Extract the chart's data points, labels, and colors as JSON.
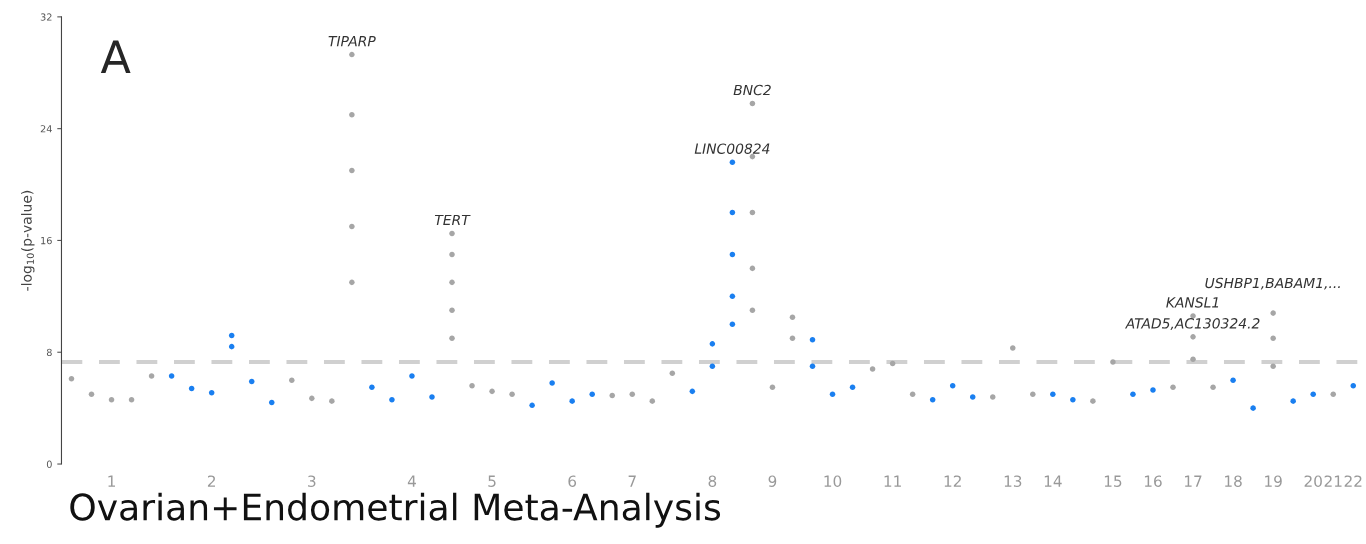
{
  "chart_data": {
    "type": "scatter",
    "title": "Ovarian+Endometrial Meta-Analysis",
    "ylabel": "-log$_{10}$(p-value)",
    "ylim": [
      0,
      32
    ],
    "yticks": [
      0,
      8,
      16,
      24,
      32
    ],
    "categories": [
      null,
      null,
      "1",
      null,
      null,
      null,
      null,
      "2",
      null,
      null,
      null,
      null,
      "3",
      null,
      null,
      null,
      null,
      "4",
      null,
      null,
      null,
      "5",
      null,
      null,
      null,
      "6",
      null,
      null,
      "7",
      null,
      null,
      null,
      "8",
      null,
      null,
      "9",
      null,
      null,
      "10",
      null,
      null,
      "11",
      null,
      null,
      "12",
      null,
      null,
      "13",
      null,
      "14",
      null,
      null,
      "15",
      null,
      "16",
      null,
      "17",
      null,
      "18",
      null,
      "19",
      null,
      "20",
      "21",
      "22"
    ],
    "marker": "circle",
    "grid": false,
    "legend": false,
    "ref_lines": [
      {
        "axis": "y",
        "value": 7.3,
        "label": null,
        "color": "#d0d0d0",
        "line_style": "dashed"
      }
    ],
    "series": [
      {
        "values": [
          6.1,
          5.0,
          4.6,
          4.6,
          6.3,
          6.3,
          5.4,
          5.1,
          9.2,
          5.9,
          4.4,
          6.0,
          4.7,
          4.5,
          29.3,
          5.5,
          4.6,
          6.3,
          4.8,
          16.5,
          5.6,
          5.2,
          5.0,
          4.2,
          5.8,
          4.5,
          5.0,
          4.9,
          5.0,
          4.5,
          6.5,
          5.2,
          8.6,
          21.6,
          25.8,
          5.5,
          10.5,
          8.9,
          5.0,
          5.5,
          6.8,
          7.2,
          5.0,
          4.6,
          5.6,
          4.8,
          4.8,
          8.3,
          5.0,
          5.0,
          4.6,
          4.5,
          7.3,
          5.0,
          5.3,
          5.5,
          10.6,
          5.5,
          6.0,
          4.0,
          10.8,
          4.5,
          5.0,
          5.0,
          5.6
        ],
        "colors": [
          "#a6a6a6",
          "#a6a6a6",
          "#a6a6a6",
          "#a6a6a6",
          "#a6a6a6",
          "#1a7ff0",
          "#1a7ff0",
          "#1a7ff0",
          "#1a7ff0",
          "#1a7ff0",
          "#1a7ff0",
          "#a6a6a6",
          "#a6a6a6",
          "#a6a6a6",
          "#a6a6a6",
          "#1a7ff0",
          "#1a7ff0",
          "#1a7ff0",
          "#1a7ff0",
          "#a6a6a6",
          "#a6a6a6",
          "#a6a6a6",
          "#a6a6a6",
          "#1a7ff0",
          "#1a7ff0",
          "#1a7ff0",
          "#1a7ff0",
          "#a6a6a6",
          "#a6a6a6",
          "#a6a6a6",
          "#a6a6a6",
          "#1a7ff0",
          "#1a7ff0",
          "#1a7ff0",
          "#a6a6a6",
          "#a6a6a6",
          "#a6a6a6",
          "#1a7ff0",
          "#1a7ff0",
          "#1a7ff0",
          "#a6a6a6",
          "#a6a6a6",
          "#a6a6a6",
          "#1a7ff0",
          "#1a7ff0",
          "#1a7ff0",
          "#a6a6a6",
          "#a6a6a6",
          "#a6a6a6",
          "#1a7ff0",
          "#1a7ff0",
          "#a6a6a6",
          "#a6a6a6",
          "#1a7ff0",
          "#1a7ff0",
          "#a6a6a6",
          "#a6a6a6",
          "#a6a6a6",
          "#1a7ff0",
          "#1a7ff0",
          "#a6a6a6",
          "#1a7ff0",
          "#1a7ff0",
          "#a6a6a6",
          "#1a7ff0"
        ]
      },
      {
        "values": [
          null,
          null,
          null,
          null,
          null,
          null,
          null,
          null,
          8.4,
          null,
          null,
          null,
          null,
          null,
          25,
          null,
          null,
          null,
          null,
          15.0,
          null,
          null,
          null,
          null,
          null,
          null,
          null,
          null,
          null,
          null,
          null,
          null,
          7.0,
          18,
          22,
          null,
          9,
          7,
          null,
          null,
          null,
          null,
          null,
          null,
          null,
          null,
          null,
          null,
          null,
          null,
          null,
          null,
          null,
          null,
          null,
          null,
          9.1,
          null,
          null,
          null,
          9,
          null,
          null,
          null,
          null
        ],
        "colors": [
          "#a6a6a6",
          "#a6a6a6",
          "#a6a6a6",
          "#a6a6a6",
          "#a6a6a6",
          "#1a7ff0",
          "#1a7ff0",
          "#1a7ff0",
          "#1a7ff0",
          "#1a7ff0",
          "#1a7ff0",
          "#a6a6a6",
          "#a6a6a6",
          "#a6a6a6",
          "#a6a6a6",
          "#1a7ff0",
          "#1a7ff0",
          "#1a7ff0",
          "#1a7ff0",
          "#a6a6a6",
          "#a6a6a6",
          "#a6a6a6",
          "#a6a6a6",
          "#1a7ff0",
          "#1a7ff0",
          "#1a7ff0",
          "#1a7ff0",
          "#a6a6a6",
          "#a6a6a6",
          "#a6a6a6",
          "#a6a6a6",
          "#1a7ff0",
          "#1a7ff0",
          "#1a7ff0",
          "#a6a6a6",
          "#a6a6a6",
          "#a6a6a6",
          "#1a7ff0",
          "#1a7ff0",
          "#1a7ff0",
          "#a6a6a6",
          "#a6a6a6",
          "#a6a6a6",
          "#1a7ff0",
          "#1a7ff0",
          "#1a7ff0",
          "#a6a6a6",
          "#a6a6a6",
          "#a6a6a6",
          "#1a7ff0",
          "#1a7ff0",
          "#a6a6a6",
          "#a6a6a6",
          "#1a7ff0",
          "#1a7ff0",
          "#a6a6a6",
          "#a6a6a6",
          "#a6a6a6",
          "#1a7ff0",
          "#1a7ff0",
          "#a6a6a6",
          "#1a7ff0",
          "#1a7ff0",
          "#a6a6a6",
          "#1a7ff0"
        ]
      },
      {
        "values": [
          null,
          null,
          null,
          null,
          null,
          null,
          null,
          null,
          null,
          null,
          null,
          null,
          null,
          null,
          21,
          null,
          null,
          null,
          null,
          13,
          null,
          null,
          null,
          null,
          null,
          null,
          null,
          null,
          null,
          null,
          null,
          null,
          null,
          15,
          18,
          null,
          null,
          null,
          null,
          null,
          null,
          null,
          null,
          null,
          null,
          null,
          null,
          null,
          null,
          null,
          null,
          null,
          null,
          null,
          null,
          null,
          7.5,
          null,
          null,
          null,
          7,
          null,
          null,
          null,
          null
        ],
        "colors": [
          "#a6a6a6",
          "#a6a6a6",
          "#a6a6a6",
          "#a6a6a6",
          "#a6a6a6",
          "#1a7ff0",
          "#1a7ff0",
          "#1a7ff0",
          "#1a7ff0",
          "#1a7ff0",
          "#1a7ff0",
          "#a6a6a6",
          "#a6a6a6",
          "#a6a6a6",
          "#a6a6a6",
          "#1a7ff0",
          "#1a7ff0",
          "#1a7ff0",
          "#1a7ff0",
          "#a6a6a6",
          "#a6a6a6",
          "#a6a6a6",
          "#a6a6a6",
          "#1a7ff0",
          "#1a7ff0",
          "#1a7ff0",
          "#1a7ff0",
          "#a6a6a6",
          "#a6a6a6",
          "#a6a6a6",
          "#a6a6a6",
          "#1a7ff0",
          "#1a7ff0",
          "#1a7ff0",
          "#a6a6a6",
          "#a6a6a6",
          "#a6a6a6",
          "#1a7ff0",
          "#1a7ff0",
          "#1a7ff0",
          "#a6a6a6",
          "#a6a6a6",
          "#a6a6a6",
          "#1a7ff0",
          "#1a7ff0",
          "#1a7ff0",
          "#a6a6a6",
          "#a6a6a6",
          "#a6a6a6",
          "#1a7ff0",
          "#1a7ff0",
          "#a6a6a6",
          "#a6a6a6",
          "#1a7ff0",
          "#1a7ff0",
          "#a6a6a6",
          "#a6a6a6",
          "#a6a6a6",
          "#1a7ff0",
          "#1a7ff0",
          "#a6a6a6",
          "#1a7ff0",
          "#1a7ff0",
          "#a6a6a6",
          "#1a7ff0"
        ]
      },
      {
        "values": [
          null,
          null,
          null,
          null,
          null,
          null,
          null,
          null,
          null,
          null,
          null,
          null,
          null,
          null,
          17,
          null,
          null,
          null,
          null,
          11,
          null,
          null,
          null,
          null,
          null,
          null,
          null,
          null,
          null,
          null,
          null,
          null,
          null,
          12,
          14,
          null,
          null,
          null,
          null,
          null,
          null,
          null,
          null,
          null,
          null,
          null,
          null,
          null,
          null,
          null,
          null,
          null,
          null,
          null,
          null,
          null,
          null,
          null,
          null,
          null,
          null,
          null,
          null,
          null,
          null
        ],
        "colors": [
          "#a6a6a6",
          "#a6a6a6",
          "#a6a6a6",
          "#a6a6a6",
          "#a6a6a6",
          "#1a7ff0",
          "#1a7ff0",
          "#1a7ff0",
          "#1a7ff0",
          "#1a7ff0",
          "#1a7ff0",
          "#a6a6a6",
          "#a6a6a6",
          "#a6a6a6",
          "#a6a6a6",
          "#1a7ff0",
          "#1a7ff0",
          "#1a7ff0",
          "#1a7ff0",
          "#a6a6a6",
          "#a6a6a6",
          "#a6a6a6",
          "#a6a6a6",
          "#1a7ff0",
          "#1a7ff0",
          "#1a7ff0",
          "#1a7ff0",
          "#a6a6a6",
          "#a6a6a6",
          "#a6a6a6",
          "#a6a6a6",
          "#1a7ff0",
          "#1a7ff0",
          "#1a7ff0",
          "#a6a6a6",
          "#a6a6a6",
          "#a6a6a6",
          "#1a7ff0",
          "#1a7ff0",
          "#1a7ff0",
          "#a6a6a6",
          "#a6a6a6",
          "#a6a6a6",
          "#1a7ff0",
          "#1a7ff0",
          "#1a7ff0",
          "#a6a6a6",
          "#a6a6a6",
          "#a6a6a6",
          "#1a7ff0",
          "#1a7ff0",
          "#a6a6a6",
          "#a6a6a6",
          "#1a7ff0",
          "#1a7ff0",
          "#a6a6a6",
          "#a6a6a6",
          "#a6a6a6",
          "#1a7ff0",
          "#1a7ff0",
          "#a6a6a6",
          "#1a7ff0",
          "#1a7ff0",
          "#a6a6a6",
          "#1a7ff0"
        ]
      },
      {
        "values": [
          null,
          null,
          null,
          null,
          null,
          null,
          null,
          null,
          null,
          null,
          null,
          null,
          null,
          null,
          13,
          null,
          null,
          null,
          null,
          9,
          null,
          null,
          null,
          null,
          null,
          null,
          null,
          null,
          null,
          null,
          null,
          null,
          null,
          10,
          11,
          null,
          null,
          null,
          null,
          null,
          null,
          null,
          null,
          null,
          null,
          null,
          null,
          null,
          null,
          null,
          null,
          null,
          null,
          null,
          null,
          null,
          null,
          null,
          null,
          null,
          null,
          null,
          null,
          null,
          null
        ],
        "colors": [
          "#a6a6a6",
          "#a6a6a6",
          "#a6a6a6",
          "#a6a6a6",
          "#a6a6a6",
          "#1a7ff0",
          "#1a7ff0",
          "#1a7ff0",
          "#1a7ff0",
          "#1a7ff0",
          "#1a7ff0",
          "#a6a6a6",
          "#a6a6a6",
          "#a6a6a6",
          "#a6a6a6",
          "#1a7ff0",
          "#1a7ff0",
          "#1a7ff0",
          "#1a7ff0",
          "#a6a6a6",
          "#a6a6a6",
          "#a6a6a6",
          "#a6a6a6",
          "#1a7ff0",
          "#1a7ff0",
          "#1a7ff0",
          "#1a7ff0",
          "#a6a6a6",
          "#a6a6a6",
          "#a6a6a6",
          "#a6a6a6",
          "#1a7ff0",
          "#1a7ff0",
          "#1a7ff0",
          "#a6a6a6",
          "#a6a6a6",
          "#a6a6a6",
          "#1a7ff0",
          "#1a7ff0",
          "#1a7ff0",
          "#a6a6a6",
          "#a6a6a6",
          "#a6a6a6",
          "#1a7ff0",
          "#1a7ff0",
          "#1a7ff0",
          "#a6a6a6",
          "#a6a6a6",
          "#a6a6a6",
          "#1a7ff0",
          "#1a7ff0",
          "#a6a6a6",
          "#a6a6a6",
          "#1a7ff0",
          "#1a7ff0",
          "#a6a6a6",
          "#a6a6a6",
          "#a6a6a6",
          "#1a7ff0",
          "#1a7ff0",
          "#a6a6a6",
          "#1a7ff0",
          "#1a7ff0",
          "#a6a6a6",
          "#1a7ff0"
        ]
      }
    ],
    "annotations": [
      "A",
      {
        "text": "TIPARP",
        "y": 29.3
      },
      {
        "text": "TERT",
        "y": 16.5
      },
      {
        "text": "LINC00824",
        "y": 21.6
      },
      {
        "text": "BNC2",
        "y": 25.8
      },
      {
        "text": "ATAD5,AC130324.2",
        "y": 9.1
      },
      {
        "text": "KANSL1",
        "y": 10.6
      },
      {
        "text": "USHBP1,BABAM1,...",
        "y": 10.8
      }
    ]
  }
}
